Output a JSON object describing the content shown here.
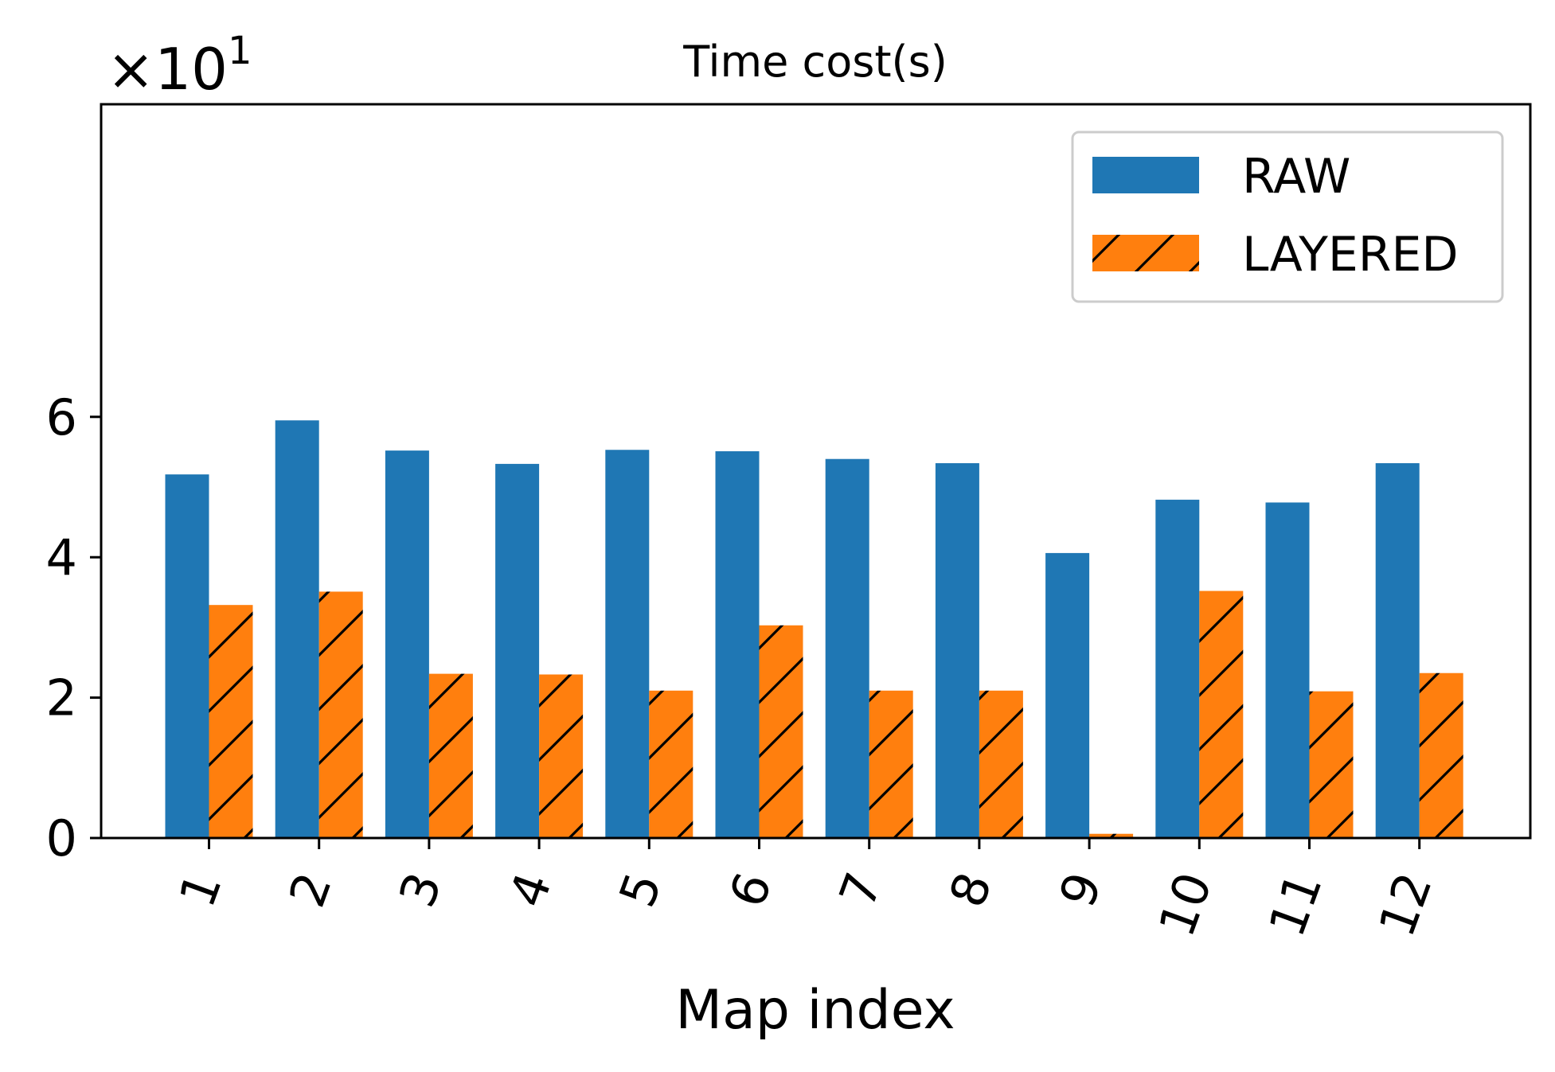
{
  "chart_data": {
    "type": "bar",
    "title": "Time cost(s)",
    "xlabel": "Map index",
    "ylabel": "",
    "scale_base": "×10",
    "scale_exponent": "1",
    "categories": [
      "1",
      "2",
      "3",
      "4",
      "5",
      "6",
      "7",
      "8",
      "9",
      "10",
      "11",
      "12"
    ],
    "series": [
      {
        "name": "RAW",
        "color": "#1f77b4",
        "hatch": "none",
        "values": [
          5.18,
          5.95,
          5.52,
          5.33,
          5.53,
          5.51,
          5.4,
          5.34,
          4.06,
          4.82,
          4.78,
          5.34
        ]
      },
      {
        "name": "LAYERED",
        "color": "#ff7f0e",
        "hatch": "diagonal",
        "values": [
          3.32,
          3.51,
          2.34,
          2.33,
          2.1,
          3.03,
          2.1,
          2.1,
          0.06,
          3.52,
          2.09,
          2.35
        ]
      }
    ],
    "yticks": [
      "0",
      "2",
      "4",
      "6"
    ],
    "ylim": [
      0,
      6.25
    ],
    "legend": "upper-right",
    "grid": false
  }
}
